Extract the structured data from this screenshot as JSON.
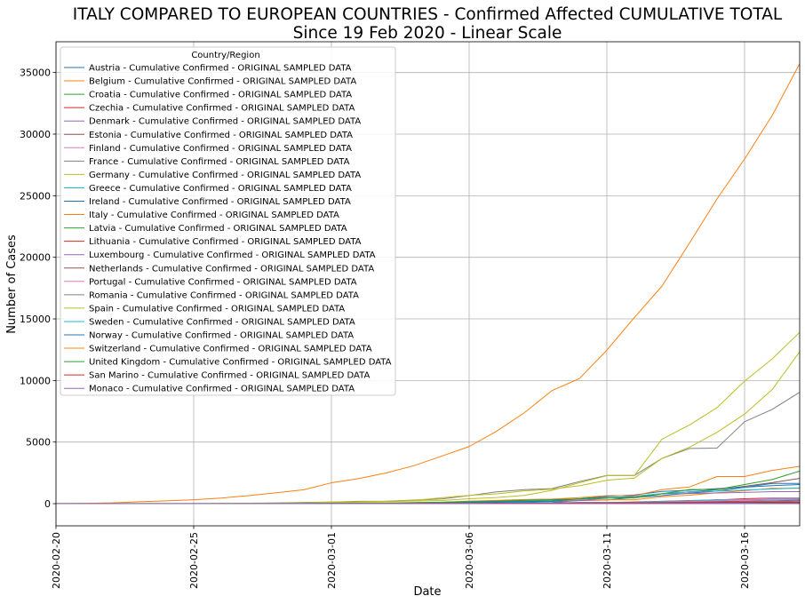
{
  "chart_data": {
    "type": "line",
    "title_line1": "ITALY COMPARED TO EUROPEAN COUNTRIES - Confirmed Affected CUMULATIVE TOTAL",
    "title_line2": "Since 19 Feb 2020 - Linear Scale",
    "xlabel": "Date",
    "ylabel": "Number of Cases",
    "legend_title": "Country/Region",
    "legend_position": "upper-left",
    "grid": true,
    "xlim": [
      "2020-02-20",
      "2020-03-18"
    ],
    "ylim": [
      -1800,
      37500
    ],
    "x_ticks": [
      "2020-02-20",
      "2020-02-25",
      "2020-03-01",
      "2020-03-06",
      "2020-03-11",
      "2020-03-16"
    ],
    "y_ticks": [
      0,
      5000,
      10000,
      15000,
      20000,
      25000,
      30000,
      35000
    ],
    "x": [
      "2020-02-20",
      "2020-02-21",
      "2020-02-22",
      "2020-02-23",
      "2020-02-24",
      "2020-02-25",
      "2020-02-26",
      "2020-02-27",
      "2020-02-28",
      "2020-02-29",
      "2020-03-01",
      "2020-03-02",
      "2020-03-03",
      "2020-03-04",
      "2020-03-05",
      "2020-03-06",
      "2020-03-07",
      "2020-03-08",
      "2020-03-09",
      "2020-03-10",
      "2020-03-11",
      "2020-03-12",
      "2020-03-13",
      "2020-03-14",
      "2020-03-15",
      "2020-03-16",
      "2020-03-17",
      "2020-03-18"
    ],
    "series": [
      {
        "name": "Austria - Cumulative Confirmed - ORIGINAL SAMPLED DATA",
        "color": "#1f77b4",
        "values": [
          0,
          0,
          0,
          0,
          0,
          2,
          2,
          3,
          3,
          9,
          14,
          18,
          29,
          41,
          55,
          79,
          104,
          131,
          182,
          246,
          302,
          504,
          655,
          860,
          1018,
          1332,
          1646,
          1646
        ]
      },
      {
        "name": "Belgium - Cumulative Confirmed - ORIGINAL SAMPLED DATA",
        "color": "#ff7f0e",
        "values": [
          1,
          1,
          1,
          1,
          1,
          1,
          1,
          1,
          1,
          1,
          2,
          8,
          13,
          23,
          50,
          109,
          169,
          200,
          239,
          267,
          314,
          314,
          559,
          689,
          886,
          1058,
          1243,
          1243
        ]
      },
      {
        "name": "Croatia - Cumulative Confirmed - ORIGINAL SAMPLED DATA",
        "color": "#2ca02c",
        "values": [
          0,
          0,
          0,
          0,
          0,
          1,
          3,
          3,
          5,
          6,
          7,
          7,
          9,
          10,
          10,
          11,
          12,
          12,
          12,
          14,
          19,
          32,
          38,
          49,
          57,
          65,
          81,
          81
        ]
      },
      {
        "name": "Czechia - Cumulative Confirmed - ORIGINAL SAMPLED DATA",
        "color": "#d62728",
        "values": [
          0,
          0,
          0,
          0,
          0,
          0,
          0,
          0,
          0,
          0,
          3,
          3,
          5,
          8,
          12,
          19,
          31,
          31,
          41,
          91,
          94,
          141,
          189,
          253,
          298,
          396,
          464,
          464
        ]
      },
      {
        "name": "Denmark - Cumulative Confirmed - ORIGINAL SAMPLED DATA",
        "color": "#9467bd",
        "values": [
          0,
          0,
          0,
          0,
          0,
          0,
          0,
          1,
          1,
          3,
          4,
          4,
          6,
          10,
          10,
          23,
          23,
          35,
          90,
          262,
          442,
          615,
          801,
          827,
          864,
          914,
          977,
          977
        ]
      },
      {
        "name": "Estonia - Cumulative Confirmed - ORIGINAL SAMPLED DATA",
        "color": "#8c564b",
        "values": [
          0,
          0,
          0,
          0,
          0,
          0,
          0,
          1,
          1,
          1,
          1,
          1,
          2,
          2,
          3,
          10,
          10,
          10,
          10,
          12,
          16,
          16,
          79,
          115,
          171,
          205,
          225,
          225
        ]
      },
      {
        "name": "Finland - Cumulative Confirmed - ORIGINAL SAMPLED DATA",
        "color": "#e377c2",
        "values": [
          1,
          1,
          1,
          1,
          1,
          1,
          2,
          2,
          2,
          3,
          6,
          6,
          6,
          6,
          12,
          15,
          15,
          23,
          30,
          40,
          59,
          59,
          155,
          225,
          244,
          277,
          321,
          321
        ]
      },
      {
        "name": "France - Cumulative Confirmed - ORIGINAL SAMPLED DATA",
        "color": "#7f7f7f",
        "values": [
          12,
          12,
          12,
          12,
          12,
          12,
          18,
          38,
          57,
          100,
          130,
          191,
          204,
          288,
          380,
          656,
          957,
          1134,
          1217,
          1792,
          2289,
          2289,
          3672,
          4480,
          4513,
          6650,
          7652,
          9043
        ]
      },
      {
        "name": "Germany - Cumulative Confirmed - ORIGINAL SAMPLED DATA",
        "color": "#bcbd22",
        "values": [
          16,
          16,
          16,
          16,
          16,
          16,
          18,
          26,
          48,
          79,
          130,
          159,
          196,
          262,
          482,
          670,
          799,
          1040,
          1176,
          1457,
          1908,
          2078,
          3675,
          4585,
          5795,
          7272,
          9257,
          12327
        ]
      },
      {
        "name": "Greece - Cumulative Confirmed - ORIGINAL SAMPLED DATA",
        "color": "#17becf",
        "values": [
          0,
          0,
          0,
          0,
          0,
          0,
          1,
          3,
          4,
          4,
          7,
          7,
          7,
          9,
          31,
          45,
          46,
          73,
          73,
          89,
          99,
          99,
          190,
          228,
          331,
          331,
          387,
          387
        ]
      },
      {
        "name": "Ireland - Cumulative Confirmed - ORIGINAL SAMPLED DATA",
        "color": "#1f77b4",
        "values": [
          0,
          0,
          0,
          0,
          0,
          0,
          0,
          0,
          0,
          1,
          1,
          1,
          2,
          6,
          6,
          18,
          18,
          19,
          21,
          34,
          43,
          43,
          90,
          129,
          129,
          169,
          223,
          292
        ]
      },
      {
        "name": "Italy - Cumulative Confirmed - ORIGINAL SAMPLED DATA",
        "color": "#ff7f0e",
        "values": [
          3,
          20,
          62,
          155,
          229,
          322,
          453,
          655,
          888,
          1128,
          1694,
          2036,
          2502,
          3089,
          3858,
          4636,
          5883,
          7375,
          9172,
          10149,
          12462,
          15113,
          17660,
          21157,
          24747,
          27980,
          31506,
          35713
        ]
      },
      {
        "name": "Latvia - Cumulative Confirmed - ORIGINAL SAMPLED DATA",
        "color": "#2ca02c",
        "values": [
          0,
          0,
          0,
          0,
          0,
          0,
          0,
          0,
          0,
          0,
          0,
          1,
          1,
          1,
          1,
          1,
          2,
          6,
          8,
          10,
          10,
          16,
          17,
          26,
          30,
          34,
          49,
          71
        ]
      },
      {
        "name": "Lithuania - Cumulative Confirmed - ORIGINAL SAMPLED DATA",
        "color": "#d62728",
        "values": [
          0,
          0,
          0,
          0,
          0,
          0,
          0,
          0,
          1,
          1,
          1,
          1,
          1,
          1,
          1,
          1,
          1,
          1,
          1,
          3,
          3,
          3,
          6,
          8,
          12,
          17,
          25,
          27
        ]
      },
      {
        "name": "Luxembourg - Cumulative Confirmed - ORIGINAL SAMPLED DATA",
        "color": "#9467bd",
        "values": [
          0,
          0,
          0,
          0,
          0,
          0,
          0,
          0,
          0,
          1,
          1,
          1,
          2,
          2,
          2,
          3,
          3,
          4,
          5,
          7,
          7,
          26,
          34,
          51,
          59,
          77,
          140,
          203
        ]
      },
      {
        "name": "Netherlands - Cumulative Confirmed - ORIGINAL SAMPLED DATA",
        "color": "#8c564b",
        "values": [
          0,
          0,
          0,
          0,
          0,
          0,
          0,
          1,
          1,
          6,
          10,
          18,
          24,
          38,
          82,
          128,
          188,
          265,
          321,
          382,
          503,
          503,
          804,
          959,
          1135,
          1413,
          1705,
          2051
        ]
      },
      {
        "name": "Portugal - Cumulative Confirmed - ORIGINAL SAMPLED DATA",
        "color": "#e377c2",
        "values": [
          0,
          0,
          0,
          0,
          0,
          0,
          0,
          0,
          0,
          0,
          0,
          2,
          2,
          5,
          8,
          13,
          20,
          30,
          30,
          41,
          59,
          59,
          112,
          169,
          245,
          331,
          448,
          448
        ]
      },
      {
        "name": "Romania - Cumulative Confirmed - ORIGINAL SAMPLED DATA",
        "color": "#7f7f7f",
        "values": [
          0,
          0,
          0,
          0,
          0,
          0,
          1,
          1,
          3,
          3,
          3,
          3,
          3,
          4,
          6,
          9,
          9,
          15,
          15,
          25,
          45,
          49,
          89,
          123,
          131,
          158,
          184,
          260
        ]
      },
      {
        "name": "Spain - Cumulative Confirmed - ORIGINAL SAMPLED DATA",
        "color": "#bcbd22",
        "values": [
          2,
          2,
          2,
          2,
          2,
          6,
          13,
          15,
          32,
          45,
          84,
          120,
          165,
          222,
          259,
          400,
          500,
          673,
          1073,
          1695,
          2277,
          2277,
          5232,
          6391,
          7798,
          9942,
          11748,
          13910
        ]
      },
      {
        "name": "Sweden - Cumulative Confirmed - ORIGINAL SAMPLED DATA",
        "color": "#17becf",
        "values": [
          1,
          1,
          1,
          1,
          1,
          1,
          1,
          7,
          12,
          14,
          15,
          21,
          21,
          24,
          38,
          47,
          161,
          203,
          248,
          355,
          500,
          599,
          814,
          961,
          1022,
          1103,
          1190,
          1279
        ]
      },
      {
        "name": "Norway - Cumulative Confirmed - ORIGINAL SAMPLED DATA",
        "color": "#1f77b4",
        "values": [
          0,
          0,
          0,
          0,
          0,
          0,
          1,
          1,
          6,
          15,
          19,
          25,
          32,
          56,
          87,
          108,
          147,
          176,
          205,
          400,
          598,
          702,
          996,
          1090,
          1221,
          1333,
          1463,
          1550
        ]
      },
      {
        "name": "Switzerland - Cumulative Confirmed - ORIGINAL SAMPLED DATA",
        "color": "#ff7f0e",
        "values": [
          0,
          0,
          0,
          0,
          0,
          1,
          1,
          8,
          8,
          18,
          27,
          42,
          56,
          90,
          114,
          214,
          268,
          337,
          374,
          491,
          652,
          652,
          1139,
          1359,
          2200,
          2200,
          2700,
          3028
        ]
      },
      {
        "name": "United Kingdom - Cumulative Confirmed - ORIGINAL SAMPLED DATA",
        "color": "#2ca02c",
        "values": [
          9,
          9,
          9,
          9,
          13,
          13,
          13,
          15,
          20,
          23,
          36,
          40,
          51,
          86,
          116,
          164,
          207,
          274,
          322,
          384,
          459,
          459,
          802,
          1144,
          1145,
          1551,
          1960,
          2642
        ]
      },
      {
        "name": "San Marino - Cumulative Confirmed - ORIGINAL SAMPLED DATA",
        "color": "#d62728",
        "values": [
          0,
          0,
          0,
          0,
          0,
          0,
          0,
          1,
          1,
          1,
          8,
          10,
          16,
          21,
          21,
          23,
          36,
          36,
          51,
          62,
          69,
          69,
          80,
          80,
          101,
          109,
          109,
          119
        ]
      },
      {
        "name": "Monaco - Cumulative Confirmed - ORIGINAL SAMPLED DATA",
        "color": "#9467bd",
        "values": [
          0,
          0,
          0,
          0,
          0,
          0,
          0,
          0,
          0,
          1,
          1,
          1,
          1,
          1,
          1,
          1,
          1,
          1,
          1,
          1,
          2,
          2,
          2,
          2,
          2,
          7,
          7,
          7
        ]
      }
    ]
  }
}
